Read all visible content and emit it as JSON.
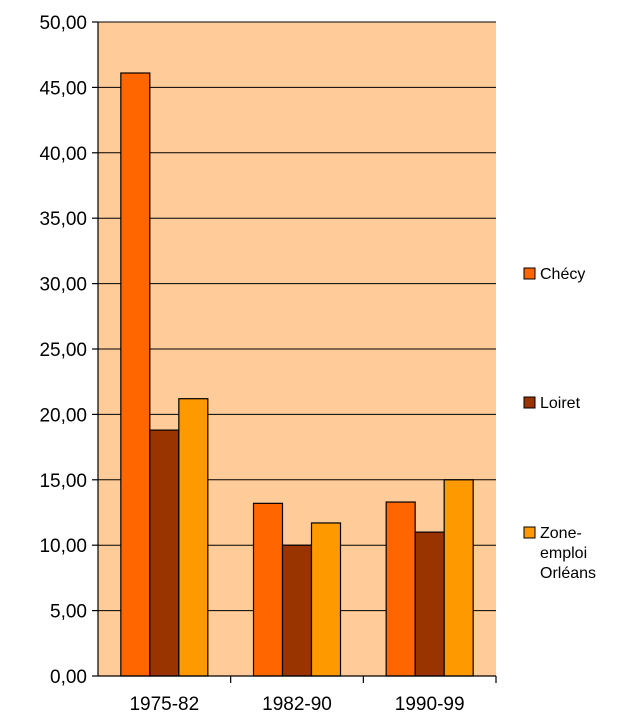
{
  "chart_data": {
    "type": "bar",
    "title": "",
    "xlabel": "",
    "ylabel": "",
    "categories": [
      "1975-82",
      "1982-90",
      "1990-99"
    ],
    "series": [
      {
        "name": "Chécy",
        "color": "#ff6600",
        "values": [
          46.1,
          13.2,
          13.3
        ]
      },
      {
        "name": "Loiret",
        "color": "#993300",
        "values": [
          18.8,
          10.0,
          11.0
        ]
      },
      {
        "name": "Zone-emploi Orléans",
        "name_lines": [
          "Zone-",
          "emploi",
          "Orléans"
        ],
        "color": "#ff9900",
        "values": [
          21.2,
          11.7,
          15.0
        ]
      }
    ],
    "ylim": [
      0,
      50
    ],
    "yticks": [
      "0,00",
      "5,00",
      "10,00",
      "15,00",
      "20,00",
      "25,00",
      "30,00",
      "35,00",
      "40,00",
      "45,00",
      "50,00"
    ],
    "grid": true,
    "plot_background": "#ffcc99",
    "legend_position": "right"
  }
}
